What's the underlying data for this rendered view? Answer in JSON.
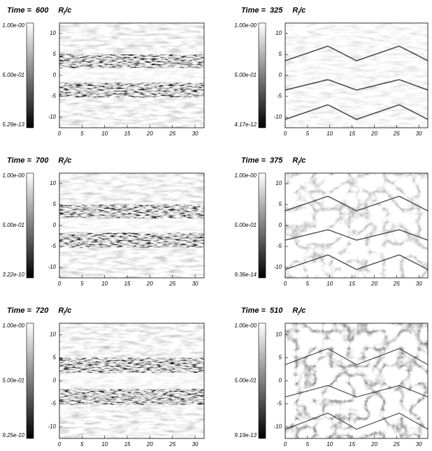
{
  "axes": {
    "xticks": [
      0,
      5,
      10,
      15,
      20,
      25,
      30
    ],
    "yticks": [
      10,
      5,
      0,
      -5,
      -10
    ]
  },
  "panels": [
    {
      "time_label": "Time =",
      "time": "600",
      "unit": "R",
      "unit_sub": "j",
      "unit_tail": "/c",
      "colorbar": {
        "top": "1.00e-00",
        "mid": "5.00e-01",
        "bottom": "5.29e-13"
      }
    },
    {
      "time_label": "Time =",
      "time": "325",
      "unit": "R",
      "unit_sub": "j",
      "unit_tail": "/c",
      "colorbar": {
        "top": "1.00e-00",
        "mid": "5.00e-01",
        "bottom": "4.17e-12"
      }
    },
    {
      "time_label": "Time =",
      "time": "700",
      "unit": "R",
      "unit_sub": "j",
      "unit_tail": "/c",
      "colorbar": {
        "top": "1.00e-00",
        "mid": "5.00e-01",
        "bottom": "3.22e-10"
      }
    },
    {
      "time_label": "Time =",
      "time": "375",
      "unit": "R",
      "unit_sub": "j",
      "unit_tail": "/c",
      "colorbar": {
        "top": "1.00e-00",
        "mid": "5.00e-01",
        "bottom": "9.36e-14"
      }
    },
    {
      "time_label": "Time =",
      "time": "720",
      "unit": "R",
      "unit_sub": "j",
      "unit_tail": "/c",
      "colorbar": {
        "top": "1.00e-00",
        "mid": "5.00e-01",
        "bottom": "9.25e-10"
      }
    },
    {
      "time_label": "Time =",
      "time": "510",
      "unit": "R",
      "unit_sub": "j",
      "unit_tail": "/c",
      "colorbar": {
        "top": "1.00e-00",
        "mid": "5.00e-01",
        "bottom": "9.19e-13"
      }
    }
  ]
}
